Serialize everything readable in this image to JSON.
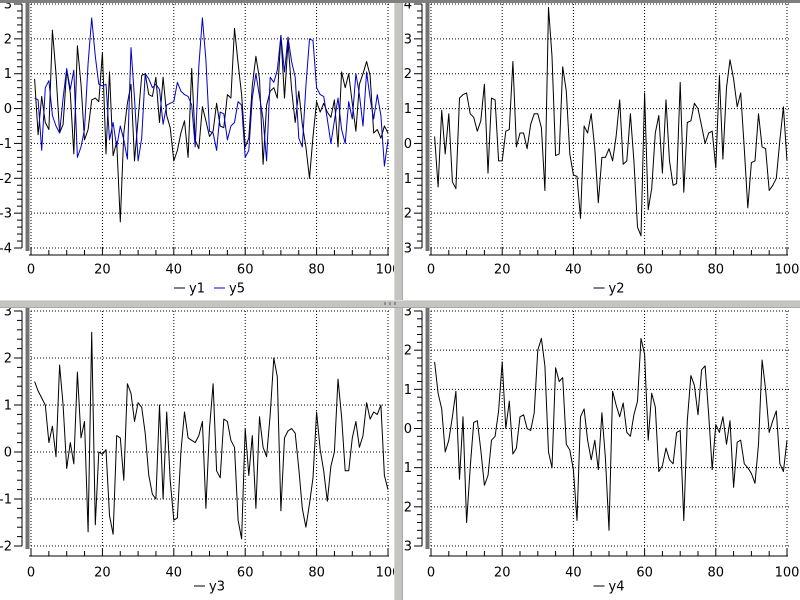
{
  "window": {
    "background": "#ffffff",
    "top_border_color": "#7f7f7f",
    "splitter_color": "#c4c4c0",
    "axis_spine_color": "#737373",
    "grid_color": "#000000",
    "tick_label_color": "#000000"
  },
  "chart_data": [
    {
      "type": "line",
      "position": "top-left",
      "title": "",
      "xlabel": "",
      "ylabel": "",
      "xlim": [
        0,
        100
      ],
      "ylim": [
        -4,
        3
      ],
      "x_ticks": [
        0,
        20,
        40,
        60,
        80,
        100
      ],
      "x_minor_step": 5,
      "y_ticks": [
        3,
        2,
        1,
        0,
        -1,
        -2,
        -3,
        -4
      ],
      "y_minor_step": 0.2,
      "grid": "dotted",
      "legend_position": "bottom-center",
      "x_start": 1,
      "x_step": 1,
      "series": [
        {
          "name": "y1",
          "color": "#000000",
          "values": [
            0.85,
            -0.75,
            0.35,
            -0.4,
            -0.6,
            2.25,
            1.0,
            -0.7,
            -0.45,
            1.1,
            0.45,
            -1.3,
            1.8,
            0.7,
            -0.9,
            -0.6,
            0.25,
            0.3,
            0.2,
            1.6,
            -1.3,
            1.05,
            -1.35,
            -0.95,
            -3.25,
            -0.7,
            0.15,
            0.7,
            -1.5,
            -0.3,
            0.95,
            1.0,
            0.4,
            0.35,
            0.9,
            -0.4,
            0.9,
            -0.2,
            -0.55,
            -1.5,
            -1.2,
            -0.7,
            -0.35,
            -1.4,
            1.15,
            -0.9,
            -1.15,
            0.05,
            -0.35,
            -0.8,
            -0.65,
            0.15,
            -0.5,
            -0.55,
            0.4,
            0.3,
            2.3,
            1.3,
            0.4,
            -1.1,
            -0.85,
            0.65,
            1.5,
            0.85,
            -1.6,
            0.1,
            0.5,
            0.6,
            0.3,
            2.1,
            0.3,
            1.9,
            0.55,
            -0.4,
            0.5,
            -0.45,
            -1.1,
            -2.0,
            -0.8,
            0.2,
            -0.1,
            0.15,
            -0.1,
            -0.25,
            0.25,
            -1.1,
            1.05,
            0.6,
            1.0,
            0.15,
            -0.65,
            0.7,
            1.0,
            1.35,
            0.95,
            -0.7,
            -0.6,
            -0.85,
            -0.5,
            -0.7
          ]
        },
        {
          "name": "y5",
          "color": "#0000cc",
          "values": [
            0.3,
            0.25,
            -1.2,
            0.6,
            0.8,
            -0.2,
            -0.5,
            -0.7,
            0.3,
            1.15,
            0.55,
            1.1,
            -1.4,
            -1.1,
            -0.6,
            1.3,
            2.6,
            1.5,
            0.7,
            0.65,
            0.7,
            -0.9,
            -0.4,
            -1.1,
            -0.5,
            -0.9,
            -1.45,
            1.75,
            0.3,
            -1.5,
            -0.85,
            1.0,
            0.85,
            0.6,
            0.7,
            0.55,
            -0.45,
            0.1,
            0.15,
            0.2,
            0.75,
            0.5,
            0.4,
            0.35,
            0.1,
            -1.1,
            1.2,
            2.6,
            1.4,
            -0.65,
            -0.7,
            -1.2,
            -0.1,
            -0.15,
            -0.9,
            -0.5,
            -0.4,
            0.2,
            0.1,
            -1.4,
            -1.2,
            0.3,
            1.0,
            0.35,
            -0.3,
            -1.5,
            0.9,
            0.75,
            1.1,
            2.1,
            1.05,
            2.05,
            1.35,
            0.9,
            -0.85,
            -1.1,
            0.65,
            2.0,
            1.95,
            0.6,
            0.4,
            0.35,
            -0.3,
            -1.0,
            -0.35,
            0.3,
            -0.6,
            -1.0,
            0.2,
            -0.3,
            1.0,
            0.4,
            -0.5,
            1.05,
            0.3,
            -0.3,
            0.4,
            -0.2,
            -1.65,
            -0.9
          ]
        }
      ]
    },
    {
      "type": "line",
      "position": "top-right",
      "title": "",
      "xlabel": "",
      "ylabel": "",
      "xlim": [
        0,
        100
      ],
      "ylim": [
        -3,
        4
      ],
      "x_ticks": [
        0,
        20,
        40,
        60,
        80,
        100
      ],
      "x_minor_step": 5,
      "y_ticks": [
        4,
        3,
        2,
        1,
        0,
        -1,
        -2,
        -3
      ],
      "y_minor_step": 0.2,
      "grid": "dotted",
      "legend_position": "bottom-center",
      "x_start": 1,
      "x_step": 1,
      "series": [
        {
          "name": "y2",
          "color": "#000000",
          "values": [
            0.2,
            -1.25,
            0.95,
            -0.3,
            0.85,
            -1.1,
            -1.3,
            1.3,
            1.4,
            1.45,
            0.85,
            0.75,
            0.35,
            0.65,
            1.7,
            -0.85,
            1.3,
            1.25,
            -0.5,
            -0.5,
            0.35,
            0.4,
            2.35,
            -0.1,
            0.3,
            0.3,
            -0.15,
            0.55,
            0.85,
            0.85,
            0.45,
            -1.35,
            3.9,
            2.5,
            -0.35,
            -0.3,
            2.2,
            1.5,
            -0.3,
            -0.9,
            -0.95,
            -2.15,
            0.5,
            0.3,
            0.85,
            -0.15,
            -1.7,
            -0.4,
            -0.4,
            -0.15,
            -0.5,
            0.2,
            1.25,
            -0.6,
            -0.5,
            0.85,
            -0.5,
            -2.4,
            -2.65,
            1.45,
            -1.9,
            -1.3,
            0.3,
            0.8,
            -0.85,
            1.25,
            -0.5,
            -1.2,
            -1.15,
            1.75,
            -1.4,
            0.6,
            0.65,
            1.15,
            1.0,
            0.5,
            0.0,
            0.3,
            0.35,
            -0.7,
            1.95,
            -0.45,
            1.6,
            2.4,
            1.85,
            1.05,
            1.45,
            -0.15,
            -1.85,
            -0.55,
            -0.5,
            0.85,
            -0.1,
            -0.15,
            -1.35,
            -1.2,
            -1.0,
            0.1,
            1.05,
            -0.5
          ]
        }
      ]
    },
    {
      "type": "line",
      "position": "bottom-left",
      "title": "",
      "xlabel": "",
      "ylabel": "",
      "xlim": [
        0,
        100
      ],
      "ylim": [
        -2,
        3
      ],
      "x_ticks": [
        0,
        20,
        40,
        60,
        80,
        100
      ],
      "x_minor_step": 5,
      "y_ticks": [
        3,
        2,
        1,
        0,
        -1,
        -2
      ],
      "y_minor_step": 0.2,
      "grid": "dotted",
      "legend_position": "bottom-center",
      "x_start": 1,
      "x_step": 1,
      "series": [
        {
          "name": "y3",
          "color": "#000000",
          "values": [
            1.5,
            1.3,
            1.15,
            1.0,
            0.2,
            0.55,
            -0.1,
            1.85,
            1.0,
            -0.35,
            0.2,
            -0.25,
            1.7,
            0.3,
            0.65,
            -1.7,
            2.55,
            -1.55,
            0.0,
            -0.05,
            0.05,
            -1.35,
            -1.75,
            0.35,
            0.3,
            -0.6,
            1.45,
            1.25,
            0.65,
            1.05,
            0.95,
            0.4,
            -0.5,
            -0.9,
            -1.0,
            1.0,
            -1.0,
            0.85,
            -0.6,
            -1.45,
            -1.4,
            0.0,
            0.85,
            0.3,
            0.25,
            0.2,
            0.35,
            0.65,
            -1.2,
            0.5,
            1.45,
            -0.4,
            -0.55,
            0.7,
            0.65,
            0.25,
            0.1,
            -1.45,
            -1.85,
            0.5,
            -0.5,
            0.35,
            -1.2,
            0.75,
            0.1,
            -0.1,
            0.8,
            2.0,
            1.6,
            -1.25,
            0.3,
            0.45,
            0.5,
            0.4,
            -0.35,
            -1.2,
            -1.6,
            -1.1,
            -0.55,
            0.85,
            0.05,
            -0.4,
            -1.05,
            -0.3,
            0.0,
            1.55,
            0.75,
            -0.4,
            -0.4,
            0.3,
            0.65,
            0.1,
            0.35,
            1.05,
            0.7,
            0.85,
            0.8,
            1.0,
            -0.5,
            -0.8
          ]
        }
      ]
    },
    {
      "type": "line",
      "position": "bottom-right",
      "title": "",
      "xlabel": "",
      "ylabel": "",
      "xlim": [
        0,
        100
      ],
      "ylim": [
        -3,
        3
      ],
      "x_ticks": [
        0,
        20,
        40,
        60,
        80,
        100
      ],
      "x_minor_step": 5,
      "y_ticks": [
        3,
        2,
        1,
        0,
        -1,
        -2,
        -3
      ],
      "y_minor_step": 0.2,
      "grid": "dotted",
      "legend_position": "bottom-center",
      "x_start": 1,
      "x_step": 1,
      "series": [
        {
          "name": "y4",
          "color": "#000000",
          "values": [
            1.7,
            0.9,
            0.5,
            -0.6,
            -0.3,
            0.3,
            0.95,
            -1.3,
            0.3,
            -2.4,
            -1.0,
            0.15,
            0.2,
            -0.55,
            -1.45,
            -1.2,
            -0.3,
            -0.2,
            0.45,
            1.7,
            0.0,
            0.7,
            -0.65,
            -0.5,
            0.3,
            0.35,
            0.0,
            -0.05,
            0.4,
            2.0,
            2.3,
            1.6,
            -0.6,
            -1.0,
            1.55,
            1.2,
            1.3,
            -0.4,
            -0.55,
            -1.05,
            -2.35,
            0.3,
            0.5,
            -0.3,
            -0.8,
            -0.3,
            -1.05,
            0.4,
            -0.75,
            -2.6,
            0.95,
            0.6,
            0.3,
            0.65,
            -0.1,
            -0.2,
            0.35,
            0.7,
            2.3,
            1.9,
            -0.3,
            0.9,
            0.55,
            -1.1,
            -0.95,
            -0.5,
            -0.8,
            -0.9,
            -0.1,
            -0.05,
            -2.35,
            0.2,
            1.35,
            1.1,
            0.35,
            1.5,
            1.6,
            0.35,
            -1.05,
            0.1,
            -0.1,
            0.3,
            -0.4,
            0.2,
            -1.5,
            -0.35,
            -0.3,
            -0.9,
            -1.0,
            -1.15,
            -1.4,
            -0.4,
            1.75,
            1.0,
            -0.1,
            0.2,
            0.45,
            -0.9,
            -1.1,
            -0.3
          ]
        }
      ]
    }
  ]
}
